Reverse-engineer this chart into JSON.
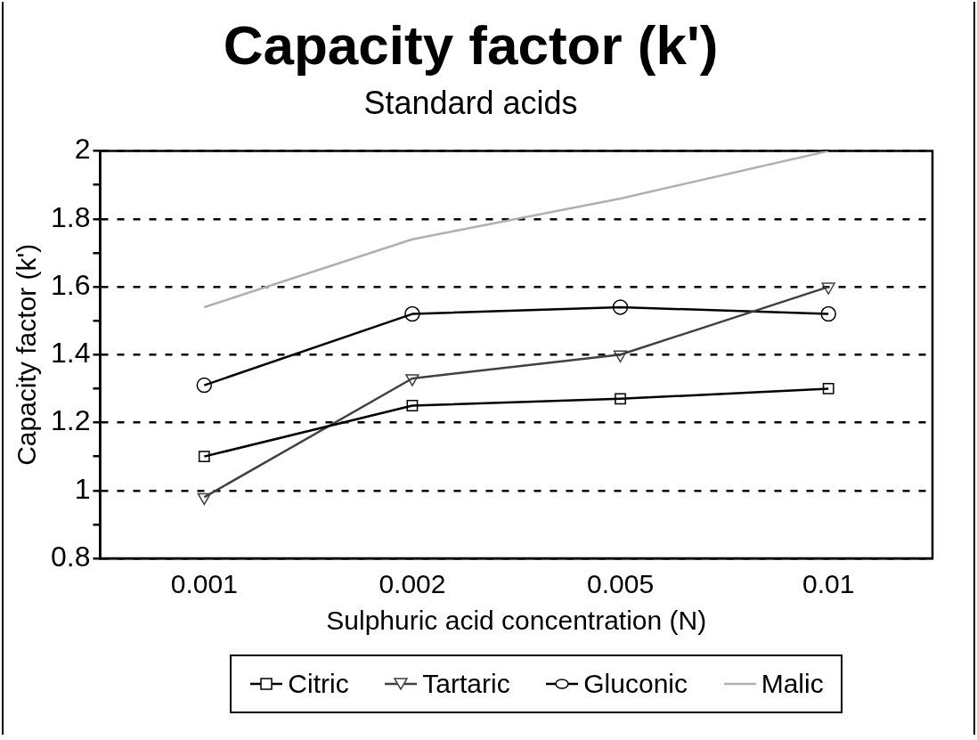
{
  "chart_data": {
    "type": "line",
    "title": "Capacity factor (k')",
    "subtitle": "Standard acids",
    "xlabel": "Sulphuric acid concentration (N)",
    "ylabel": "Capacity factor (k')",
    "categories": [
      "0.001",
      "0.002",
      "0.005",
      "0.01"
    ],
    "series": [
      {
        "name": "Citric",
        "color": "#000000",
        "marker": "square",
        "values": [
          1.1,
          1.25,
          1.27,
          1.3
        ]
      },
      {
        "name": "Tartaric",
        "color": "#404040",
        "marker": "triangle",
        "values": [
          0.98,
          1.33,
          1.4,
          1.6
        ]
      },
      {
        "name": "Gluconic",
        "color": "#000000",
        "marker": "circle",
        "values": [
          1.31,
          1.52,
          1.54,
          1.52
        ]
      },
      {
        "name": "Malic",
        "color": "#b0b0b0",
        "marker": "none",
        "values": [
          1.54,
          1.74,
          1.86,
          2.0
        ]
      }
    ],
    "ylim": [
      0.8,
      2
    ],
    "yticks": [
      0.8,
      {
        "value": 0.9,
        "label": null
      },
      1,
      {
        "value": 1.1,
        "label": null
      },
      1.2,
      {
        "value": 1.3,
        "label": null
      },
      1.4,
      {
        "value": 1.5,
        "label": null
      },
      1.6,
      {
        "value": 1.7,
        "label": null
      },
      1.8,
      {
        "value": 1.9,
        "label": null
      },
      2
    ],
    "grid": "y",
    "legend": "bottom",
    "line_style": "solid"
  }
}
